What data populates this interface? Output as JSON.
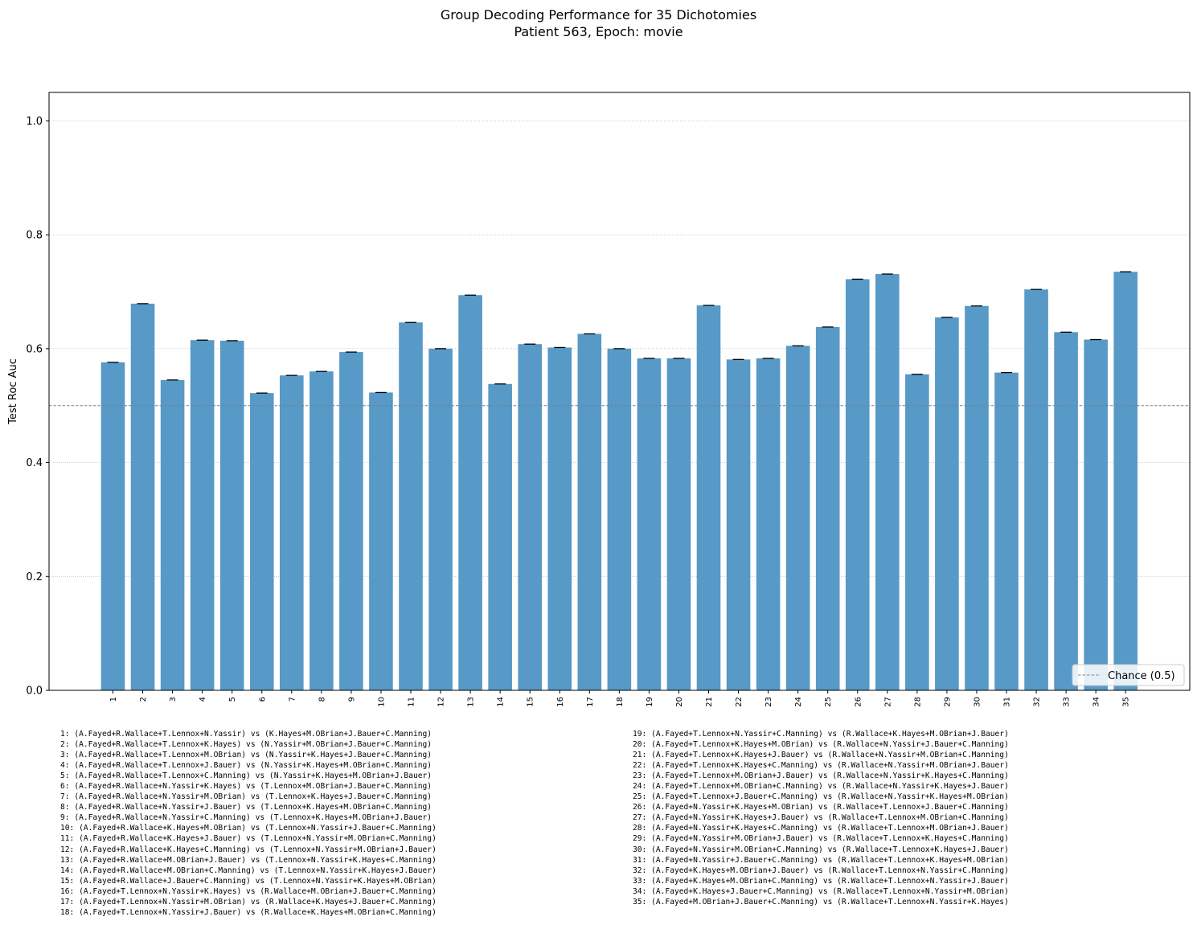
{
  "chart_data": {
    "type": "bar",
    "title": "Group Decoding Performance for 35 Dichotomies",
    "subtitle": "Patient 563, Epoch: movie",
    "ylabel": "Test Roc Auc",
    "xlabel": "",
    "ylim": [
      0,
      1.05
    ],
    "yticks": [
      0.0,
      0.2,
      0.4,
      0.6,
      0.8,
      1.0
    ],
    "ytick_labels": [
      "0.0",
      "0.2",
      "0.4",
      "0.6",
      "0.8",
      "1.0"
    ],
    "grid": "horizontal dotted",
    "bar_color": "#5799c7",
    "error_bar_color": "#000000",
    "categories": [
      "1",
      "2",
      "3",
      "4",
      "5",
      "6",
      "7",
      "8",
      "9",
      "10",
      "11",
      "12",
      "13",
      "14",
      "15",
      "16",
      "17",
      "18",
      "19",
      "20",
      "21",
      "22",
      "23",
      "24",
      "25",
      "26",
      "27",
      "28",
      "29",
      "30",
      "31",
      "32",
      "33",
      "34",
      "35"
    ],
    "values": [
      0.576,
      0.679,
      0.545,
      0.615,
      0.614,
      0.522,
      0.553,
      0.56,
      0.594,
      0.523,
      0.646,
      0.6,
      0.694,
      0.538,
      0.608,
      0.602,
      0.626,
      0.6,
      0.583,
      0.583,
      0.676,
      0.581,
      0.583,
      0.605,
      0.638,
      0.722,
      0.731,
      0.555,
      0.655,
      0.675,
      0.558,
      0.704,
      0.629,
      0.616,
      0.735
    ],
    "reference_line": {
      "value": 0.5,
      "label": "Chance (0.5)",
      "color": "#808080",
      "style": "dashed"
    },
    "legend": {
      "placement": "bottom-right",
      "entries": [
        "Chance (0.5)"
      ]
    },
    "key": [
      "1: (A.Fayed+R.Wallace+T.Lennox+N.Yassir) vs (K.Hayes+M.OBrian+J.Bauer+C.Manning)",
      "2: (A.Fayed+R.Wallace+T.Lennox+K.Hayes) vs (N.Yassir+M.OBrian+J.Bauer+C.Manning)",
      "3: (A.Fayed+R.Wallace+T.Lennox+M.OBrian) vs (N.Yassir+K.Hayes+J.Bauer+C.Manning)",
      "4: (A.Fayed+R.Wallace+T.Lennox+J.Bauer) vs (N.Yassir+K.Hayes+M.OBrian+C.Manning)",
      "5: (A.Fayed+R.Wallace+T.Lennox+C.Manning) vs (N.Yassir+K.Hayes+M.OBrian+J.Bauer)",
      "6: (A.Fayed+R.Wallace+N.Yassir+K.Hayes) vs (T.Lennox+M.OBrian+J.Bauer+C.Manning)",
      "7: (A.Fayed+R.Wallace+N.Yassir+M.OBrian) vs (T.Lennox+K.Hayes+J.Bauer+C.Manning)",
      "8: (A.Fayed+R.Wallace+N.Yassir+J.Bauer) vs (T.Lennox+K.Hayes+M.OBrian+C.Manning)",
      "9: (A.Fayed+R.Wallace+N.Yassir+C.Manning) vs (T.Lennox+K.Hayes+M.OBrian+J.Bauer)",
      "10: (A.Fayed+R.Wallace+K.Hayes+M.OBrian) vs (T.Lennox+N.Yassir+J.Bauer+C.Manning)",
      "11: (A.Fayed+R.Wallace+K.Hayes+J.Bauer) vs (T.Lennox+N.Yassir+M.OBrian+C.Manning)",
      "12: (A.Fayed+R.Wallace+K.Hayes+C.Manning) vs (T.Lennox+N.Yassir+M.OBrian+J.Bauer)",
      "13: (A.Fayed+R.Wallace+M.OBrian+J.Bauer) vs (T.Lennox+N.Yassir+K.Hayes+C.Manning)",
      "14: (A.Fayed+R.Wallace+M.OBrian+C.Manning) vs (T.Lennox+N.Yassir+K.Hayes+J.Bauer)",
      "15: (A.Fayed+R.Wallace+J.Bauer+C.Manning) vs (T.Lennox+N.Yassir+K.Hayes+M.OBrian)",
      "16: (A.Fayed+T.Lennox+N.Yassir+K.Hayes) vs (R.Wallace+M.OBrian+J.Bauer+C.Manning)",
      "17: (A.Fayed+T.Lennox+N.Yassir+M.OBrian) vs (R.Wallace+K.Hayes+J.Bauer+C.Manning)",
      "18: (A.Fayed+T.Lennox+N.Yassir+J.Bauer) vs (R.Wallace+K.Hayes+M.OBrian+C.Manning)",
      "19: (A.Fayed+T.Lennox+N.Yassir+C.Manning) vs (R.Wallace+K.Hayes+M.OBrian+J.Bauer)",
      "20: (A.Fayed+T.Lennox+K.Hayes+M.OBrian) vs (R.Wallace+N.Yassir+J.Bauer+C.Manning)",
      "21: (A.Fayed+T.Lennox+K.Hayes+J.Bauer) vs (R.Wallace+N.Yassir+M.OBrian+C.Manning)",
      "22: (A.Fayed+T.Lennox+K.Hayes+C.Manning) vs (R.Wallace+N.Yassir+M.OBrian+J.Bauer)",
      "23: (A.Fayed+T.Lennox+M.OBrian+J.Bauer) vs (R.Wallace+N.Yassir+K.Hayes+C.Manning)",
      "24: (A.Fayed+T.Lennox+M.OBrian+C.Manning) vs (R.Wallace+N.Yassir+K.Hayes+J.Bauer)",
      "25: (A.Fayed+T.Lennox+J.Bauer+C.Manning) vs (R.Wallace+N.Yassir+K.Hayes+M.OBrian)",
      "26: (A.Fayed+N.Yassir+K.Hayes+M.OBrian) vs (R.Wallace+T.Lennox+J.Bauer+C.Manning)",
      "27: (A.Fayed+N.Yassir+K.Hayes+J.Bauer) vs (R.Wallace+T.Lennox+M.OBrian+C.Manning)",
      "28: (A.Fayed+N.Yassir+K.Hayes+C.Manning) vs (R.Wallace+T.Lennox+M.OBrian+J.Bauer)",
      "29: (A.Fayed+N.Yassir+M.OBrian+J.Bauer) vs (R.Wallace+T.Lennox+K.Hayes+C.Manning)",
      "30: (A.Fayed+N.Yassir+M.OBrian+C.Manning) vs (R.Wallace+T.Lennox+K.Hayes+J.Bauer)",
      "31: (A.Fayed+N.Yassir+J.Bauer+C.Manning) vs (R.Wallace+T.Lennox+K.Hayes+M.OBrian)",
      "32: (A.Fayed+K.Hayes+M.OBrian+J.Bauer) vs (R.Wallace+T.Lennox+N.Yassir+C.Manning)",
      "33: (A.Fayed+K.Hayes+M.OBrian+C.Manning) vs (R.Wallace+T.Lennox+N.Yassir+J.Bauer)",
      "34: (A.Fayed+K.Hayes+J.Bauer+C.Manning) vs (R.Wallace+T.Lennox+N.Yassir+M.OBrian)",
      "35: (A.Fayed+M.OBrian+J.Bauer+C.Manning) vs (R.Wallace+T.Lennox+N.Yassir+K.Hayes)"
    ]
  }
}
